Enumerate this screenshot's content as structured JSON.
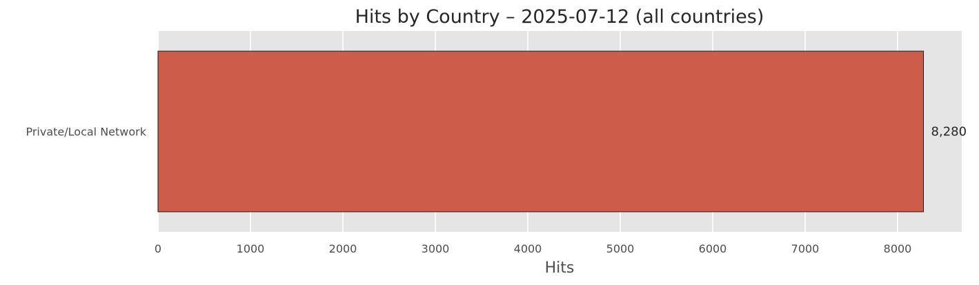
{
  "chart_data": {
    "type": "bar",
    "orientation": "horizontal",
    "title": "Hits by Country – 2025-07-12 (all countries)",
    "xlabel": "Hits",
    "ylabel": "",
    "categories": [
      "Private/Local Network"
    ],
    "values": [
      8280
    ],
    "value_labels": [
      "8,280"
    ],
    "xlim": [
      0,
      8694
    ],
    "xticks": [
      0,
      1000,
      2000,
      3000,
      4000,
      5000,
      6000,
      7000,
      8000
    ],
    "grid": true,
    "colors": {
      "bar": "#cd5c4a",
      "bar_edge": "#1a1a1a",
      "plot_background": "#e5e5e5",
      "grid": "#ffffff"
    }
  }
}
